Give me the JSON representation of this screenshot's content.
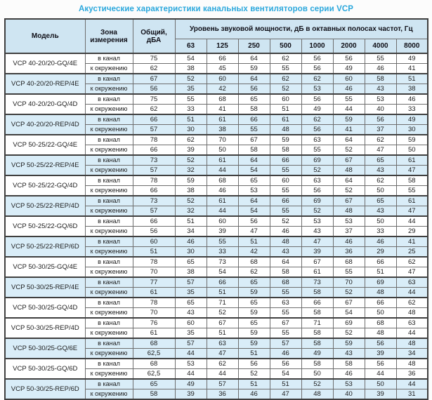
{
  "title": "Акустические характеристики канальных вентиляторов  серии VCP",
  "colors": {
    "title_accent": "#2aa7dc",
    "header_bg": "#cfe5f2",
    "shaded_row_bg": "#d9edf8",
    "border": "#3f3f3f",
    "text": "#1b1b1b"
  },
  "table": {
    "headers": {
      "model": "Модель",
      "zone": "Зона измерения",
      "total": "Общий, дБА",
      "band_group": "Уровень звуковой мощности, дБ в октавных полосах частот, Гц",
      "frequencies": [
        "63",
        "125",
        "250",
        "500",
        "1000",
        "2000",
        "4000",
        "8000"
      ]
    },
    "zone_labels": {
      "duct": "в канал",
      "ambient": "к окружению"
    },
    "rows": [
      {
        "model": "VCP 40-20/20-GQ/4E",
        "shaded": false,
        "duct": {
          "total": "75",
          "levels": [
            54,
            66,
            64,
            62,
            56,
            56,
            55,
            49
          ]
        },
        "ambient": {
          "total": "62",
          "levels": [
            38,
            45,
            59,
            55,
            56,
            49,
            46,
            41
          ]
        }
      },
      {
        "model": "VCP 40-20/20-REP/4E",
        "shaded": true,
        "duct": {
          "total": "67",
          "levels": [
            52,
            60,
            64,
            62,
            62,
            60,
            58,
            51
          ]
        },
        "ambient": {
          "total": "56",
          "levels": [
            35,
            42,
            56,
            52,
            53,
            46,
            43,
            38
          ]
        }
      },
      {
        "model": "VCP 40-20/20-GQ/4D",
        "shaded": false,
        "duct": {
          "total": "75",
          "levels": [
            55,
            68,
            65,
            60,
            56,
            55,
            53,
            46
          ]
        },
        "ambient": {
          "total": "62",
          "levels": [
            33,
            41,
            58,
            51,
            49,
            44,
            40,
            33
          ]
        }
      },
      {
        "model": "VCP 40-20/20-REP/4D",
        "shaded": true,
        "duct": {
          "total": "66",
          "levels": [
            51,
            61,
            66,
            61,
            62,
            59,
            56,
            49
          ]
        },
        "ambient": {
          "total": "57",
          "levels": [
            30,
            38,
            55,
            48,
            56,
            41,
            37,
            30
          ]
        }
      },
      {
        "model": "VCP 50-25/22-GQ/4E",
        "shaded": false,
        "duct": {
          "total": "78",
          "levels": [
            62,
            70,
            67,
            59,
            63,
            64,
            62,
            59
          ]
        },
        "ambient": {
          "total": "66",
          "levels": [
            39,
            50,
            58,
            58,
            55,
            52,
            47,
            50
          ]
        }
      },
      {
        "model": "VCP 50-25/22-REP/4E",
        "shaded": true,
        "duct": {
          "total": "73",
          "levels": [
            52,
            61,
            64,
            66,
            69,
            67,
            65,
            61
          ]
        },
        "ambient": {
          "total": "57",
          "levels": [
            32,
            44,
            54,
            55,
            52,
            48,
            43,
            47
          ]
        }
      },
      {
        "model": "VCP 50-25/22-GQ/4D",
        "shaded": false,
        "duct": {
          "total": "78",
          "levels": [
            59,
            68,
            65,
            60,
            63,
            64,
            62,
            58
          ]
        },
        "ambient": {
          "total": "66",
          "levels": [
            38,
            46,
            53,
            55,
            56,
            52,
            50,
            55
          ]
        }
      },
      {
        "model": "VCP 50-25/22-REP/4D",
        "shaded": true,
        "duct": {
          "total": "73",
          "levels": [
            52,
            61,
            64,
            66,
            69,
            67,
            65,
            61
          ]
        },
        "ambient": {
          "total": "57",
          "levels": [
            32,
            44,
            54,
            55,
            52,
            48,
            43,
            47
          ]
        }
      },
      {
        "model": "VCP 50-25/22-GQ/6D",
        "shaded": false,
        "duct": {
          "total": "66",
          "levels": [
            51,
            60,
            56,
            52,
            53,
            53,
            50,
            44
          ]
        },
        "ambient": {
          "total": "56",
          "levels": [
            34,
            39,
            47,
            46,
            43,
            37,
            33,
            29
          ]
        }
      },
      {
        "model": "VCP 50-25/22-REP/6D",
        "shaded": true,
        "duct": {
          "total": "60",
          "levels": [
            46,
            55,
            51,
            48,
            47,
            46,
            46,
            41
          ]
        },
        "ambient": {
          "total": "51",
          "levels": [
            30,
            33,
            42,
            43,
            39,
            36,
            29,
            25
          ]
        }
      },
      {
        "model": "VCP 50-30/25-GQ/4E",
        "shaded": false,
        "duct": {
          "total": "78",
          "levels": [
            65,
            73,
            68,
            64,
            67,
            68,
            66,
            62
          ]
        },
        "ambient": {
          "total": "70",
          "levels": [
            38,
            54,
            62,
            58,
            61,
            55,
            51,
            47
          ]
        }
      },
      {
        "model": "VCP 50-30/25-REP/4E",
        "shaded": true,
        "duct": {
          "total": "77",
          "levels": [
            57,
            66,
            65,
            68,
            73,
            70,
            69,
            63
          ]
        },
        "ambient": {
          "total": "61",
          "levels": [
            35,
            51,
            59,
            55,
            58,
            52,
            48,
            44
          ]
        }
      },
      {
        "model": "VCP 50-30/25-GQ/4D",
        "shaded": false,
        "duct": {
          "total": "78",
          "levels": [
            65,
            71,
            65,
            63,
            66,
            67,
            66,
            62
          ]
        },
        "ambient": {
          "total": "70",
          "levels": [
            43,
            52,
            59,
            55,
            58,
            54,
            50,
            48
          ]
        }
      },
      {
        "model": "VCP 50-30/25-REP/4D",
        "shaded": false,
        "duct": {
          "total": "76",
          "levels": [
            60,
            67,
            65,
            67,
            71,
            69,
            68,
            63
          ]
        },
        "ambient": {
          "total": "61",
          "levels": [
            35,
            51,
            59,
            55,
            58,
            52,
            48,
            44
          ]
        }
      },
      {
        "model": "VCP 50-30/25-GQ/6E",
        "shaded": true,
        "duct": {
          "total": "68",
          "levels": [
            57,
            63,
            59,
            57,
            58,
            59,
            56,
            48
          ]
        },
        "ambient": {
          "total": "62,5",
          "levels": [
            44,
            47,
            51,
            46,
            49,
            43,
            39,
            34
          ]
        }
      },
      {
        "model": "VCP 50-30/25-GQ/6D",
        "shaded": false,
        "duct": {
          "total": "68",
          "levels": [
            53,
            62,
            56,
            56,
            58,
            58,
            56,
            48
          ]
        },
        "ambient": {
          "total": "62,5",
          "levels": [
            44,
            44,
            52,
            54,
            50,
            46,
            44,
            36
          ]
        }
      },
      {
        "model": "VCP 50-30/25-REP/6D",
        "shaded": true,
        "duct": {
          "total": "65",
          "levels": [
            49,
            57,
            51,
            51,
            52,
            53,
            50,
            44
          ]
        },
        "ambient": {
          "total": "58",
          "levels": [
            39,
            36,
            46,
            47,
            48,
            40,
            39,
            31
          ]
        }
      }
    ]
  }
}
